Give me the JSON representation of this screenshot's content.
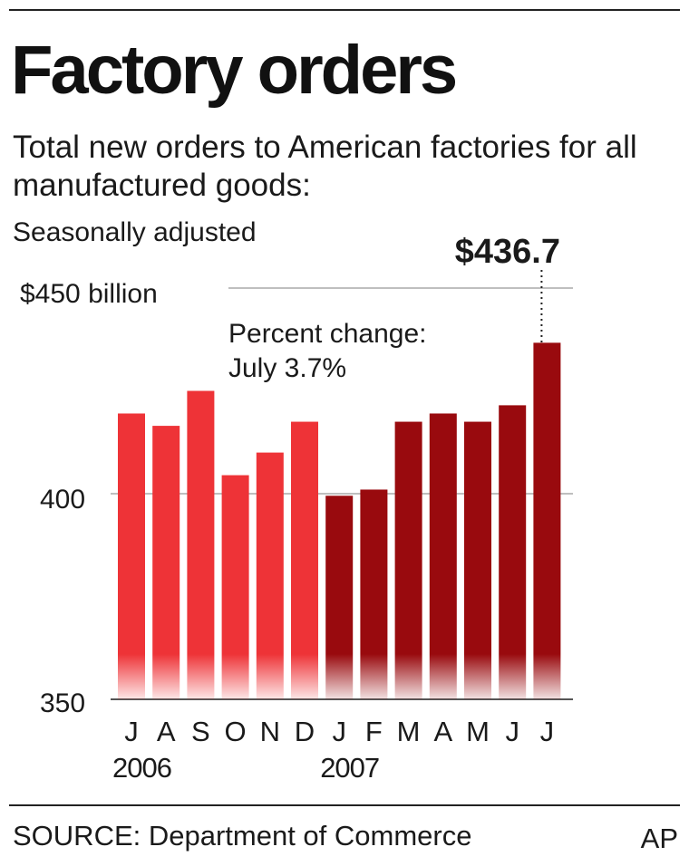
{
  "chart_data": {
    "type": "bar",
    "title": "Factory orders",
    "subtitle": "Total new orders to American factories for all manufactured goods:",
    "note": "Seasonally adjusted",
    "ylim": [
      350,
      450
    ],
    "yticks": [
      {
        "value": 450,
        "label": "$450 billion"
      },
      {
        "value": 400,
        "label": "400"
      },
      {
        "value": 350,
        "label": "350"
      }
    ],
    "categories": [
      "J",
      "A",
      "S",
      "O",
      "N",
      "D",
      "J",
      "F",
      "M",
      "A",
      "M",
      "J",
      "J"
    ],
    "year_labels": [
      {
        "label": "2006",
        "start_index": 0
      },
      {
        "label": "2007",
        "start_index": 6
      }
    ],
    "values": [
      419.5,
      416.5,
      425,
      404.5,
      410,
      417.5,
      399.5,
      401,
      417.5,
      419.5,
      417.5,
      421.5,
      436.7
    ],
    "colors": {
      "year_2006": "#ee3337",
      "year_2007": "#990a0e",
      "gridline": "#aaaaaa"
    },
    "annotations": {
      "last_value_label": "$436.7",
      "percent_change_line1": "Percent change:",
      "percent_change_line2": "July 3.7%"
    }
  },
  "footer": {
    "source": "SOURCE: Department of Commerce",
    "credit": "AP"
  }
}
